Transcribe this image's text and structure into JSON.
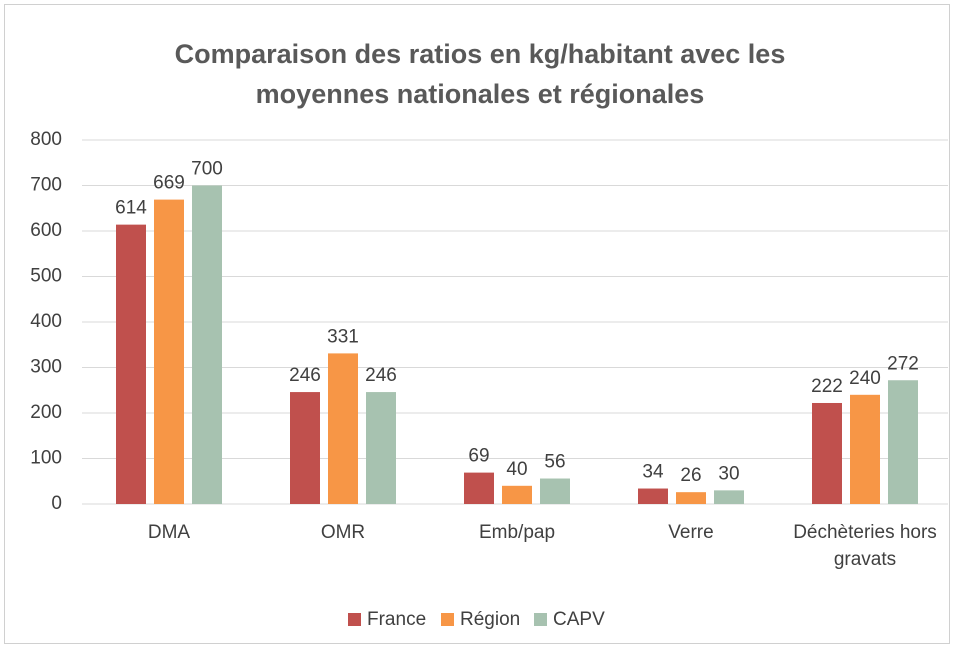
{
  "chart_data": {
    "type": "bar",
    "title": "Comparaison des ratios en kg/habitant avec les moyennes nationales et régionales",
    "categories": [
      "DMA",
      "OMR",
      "Emb/pap",
      "Verre",
      "Déchèteries hors gravats"
    ],
    "series": [
      {
        "name": "France",
        "color": "#c0504d",
        "values": [
          614,
          246,
          69,
          34,
          222
        ]
      },
      {
        "name": "Région",
        "color": "#f79646",
        "values": [
          669,
          331,
          40,
          26,
          240
        ]
      },
      {
        "name": "CAPV",
        "color": "#a7c2b0",
        "values": [
          700,
          246,
          56,
          30,
          272
        ]
      }
    ],
    "ylim": [
      0,
      800
    ],
    "yticks": [
      0,
      100,
      200,
      300,
      400,
      500,
      600,
      700,
      800
    ],
    "grid": true,
    "legend": "bottom"
  }
}
